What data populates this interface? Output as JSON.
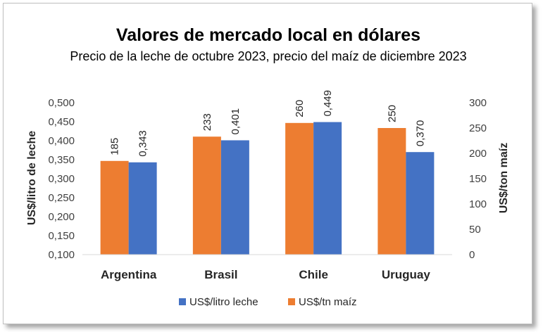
{
  "chart_data": {
    "type": "bar",
    "title": "Valores de mercado local en dólares",
    "subtitle": "Precio de la leche de octubre 2023, precio del maíz de diciembre 2023",
    "categories": [
      "Argentina",
      "Brasil",
      "Chile",
      "Uruguay"
    ],
    "series": [
      {
        "name": "US$/litro leche",
        "axis": "left",
        "color": "#4472c4",
        "values": [
          0.343,
          0.401,
          0.449,
          0.37
        ],
        "labels": [
          "0,343",
          "0,401",
          "0,449",
          "0,370"
        ]
      },
      {
        "name": "US$/tn maíz",
        "axis": "right",
        "color": "#ed7d31",
        "values": [
          185,
          233,
          260,
          250
        ],
        "labels": [
          "185",
          "233",
          "260",
          "250"
        ]
      }
    ],
    "ylabel": "US$/litro de leche",
    "ylim": [
      0.1,
      0.5
    ],
    "yticks": [
      "0,100",
      "0,150",
      "0,200",
      "0,250",
      "0,300",
      "0,350",
      "0,400",
      "0,450",
      "0,500"
    ],
    "y2label": "US$/ton maíz",
    "y2lim": [
      0,
      300
    ],
    "y2ticks": [
      "0",
      "50",
      "100",
      "150",
      "200",
      "250",
      "300"
    ],
    "legend_position": "bottom",
    "grid": false
  }
}
